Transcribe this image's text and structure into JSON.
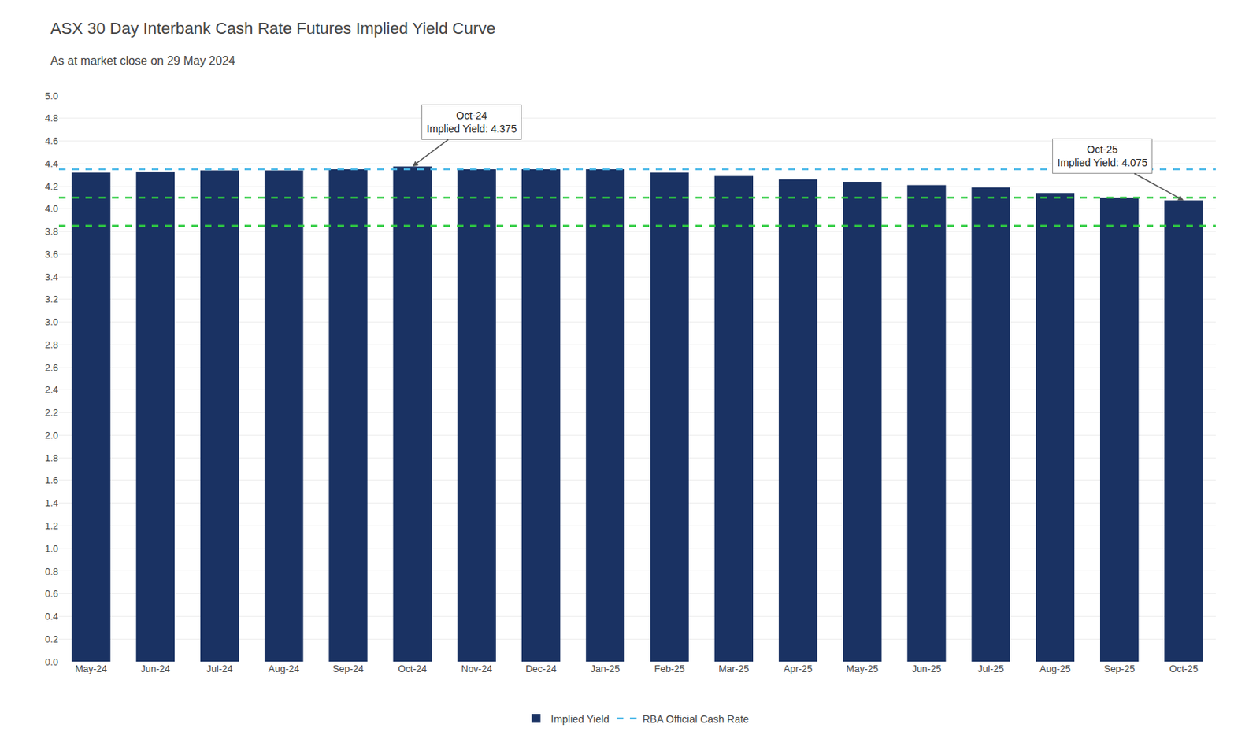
{
  "chart_data": {
    "type": "bar",
    "title": "ASX 30 Day Interbank Cash Rate Futures Implied Yield Curve",
    "subtitle": "As at market close on 29 May 2024",
    "categories": [
      "May-24",
      "Jun-24",
      "Jul-24",
      "Aug-24",
      "Sep-24",
      "Oct-24",
      "Nov-24",
      "Dec-24",
      "Jan-25",
      "Feb-25",
      "Mar-25",
      "Apr-25",
      "May-25",
      "Jun-25",
      "Jul-25",
      "Aug-25",
      "Sep-25",
      "Oct-25"
    ],
    "series": [
      {
        "name": "Implied Yield",
        "color": "#1a3263",
        "values": [
          4.32,
          4.33,
          4.34,
          4.34,
          4.35,
          4.375,
          4.35,
          4.35,
          4.35,
          4.32,
          4.29,
          4.26,
          4.24,
          4.21,
          4.19,
          4.14,
          4.1,
          4.075
        ]
      }
    ],
    "reference_lines": [
      {
        "name": "RBA Official Cash Rate",
        "value": 4.35,
        "color": "#4ab8e8",
        "line_style": "dashed"
      },
      {
        "value": 4.1,
        "color": "#2ecc40",
        "line_style": "dashed"
      },
      {
        "value": 3.85,
        "color": "#2ecc40",
        "line_style": "dashed"
      }
    ],
    "annotations": [
      {
        "text": "Oct-24\nImplied Yield: 4.375",
        "x": "Oct-24",
        "y": 4.375
      },
      {
        "text": "Oct-25\nImplied Yield: 4.075",
        "x": "Oct-25",
        "y": 4.075
      }
    ],
    "ylim": [
      0.0,
      5.0
    ],
    "yticks": [
      {
        "value": 0,
        "label": "0.0"
      },
      0.2,
      0.4,
      0.6,
      0.8,
      {
        "value": 1,
        "label": "1.0"
      },
      1.2,
      1.4,
      1.6,
      1.8,
      {
        "value": 2,
        "label": "2.0"
      },
      2.2,
      2.4,
      2.6,
      2.8,
      {
        "value": 3,
        "label": "3.0"
      },
      3.2,
      3.4,
      3.6,
      3.8,
      {
        "value": 4,
        "label": "4.0"
      },
      4.2,
      4.4,
      4.6,
      4.8,
      {
        "value": 5,
        "label": "5.0"
      }
    ],
    "grid": true,
    "legend": "bottom"
  }
}
